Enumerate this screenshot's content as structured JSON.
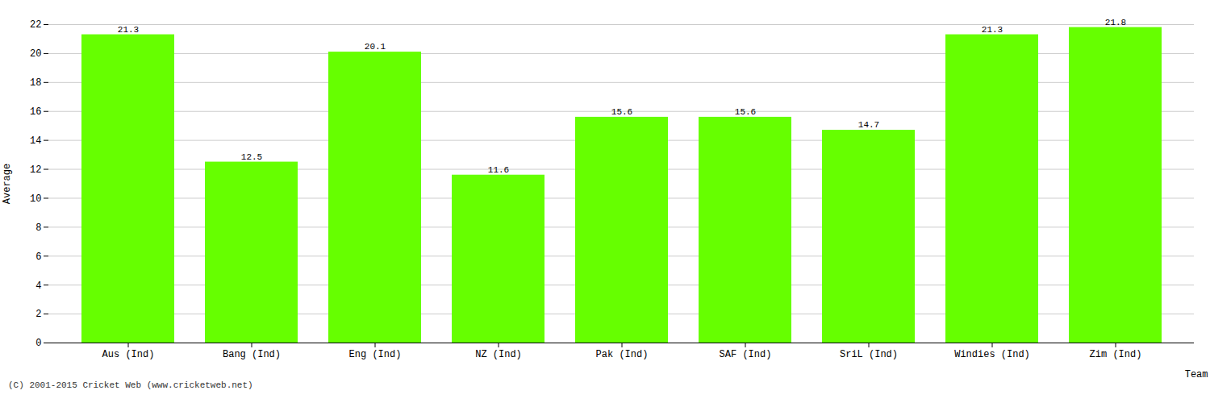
{
  "chart_data": {
    "type": "bar",
    "categories": [
      "Aus (Ind)",
      "Bang (Ind)",
      "Eng (Ind)",
      "NZ (Ind)",
      "Pak (Ind)",
      "SAF (Ind)",
      "SriL (Ind)",
      "Windies (Ind)",
      "Zim (Ind)"
    ],
    "values": [
      21.3,
      12.5,
      20.1,
      11.6,
      15.6,
      15.6,
      14.7,
      21.3,
      21.8
    ],
    "color": "#66ff00",
    "xlabel": "Team",
    "ylabel": "Average",
    "ylim": [
      0,
      22
    ],
    "yticks": [
      0,
      2,
      4,
      6,
      8,
      10,
      12,
      14,
      16,
      18,
      20,
      22
    ],
    "grid": true,
    "data_labels": true,
    "footnote": "(C) 2001-2015 Cricket Web (www.cricketweb.net)"
  }
}
